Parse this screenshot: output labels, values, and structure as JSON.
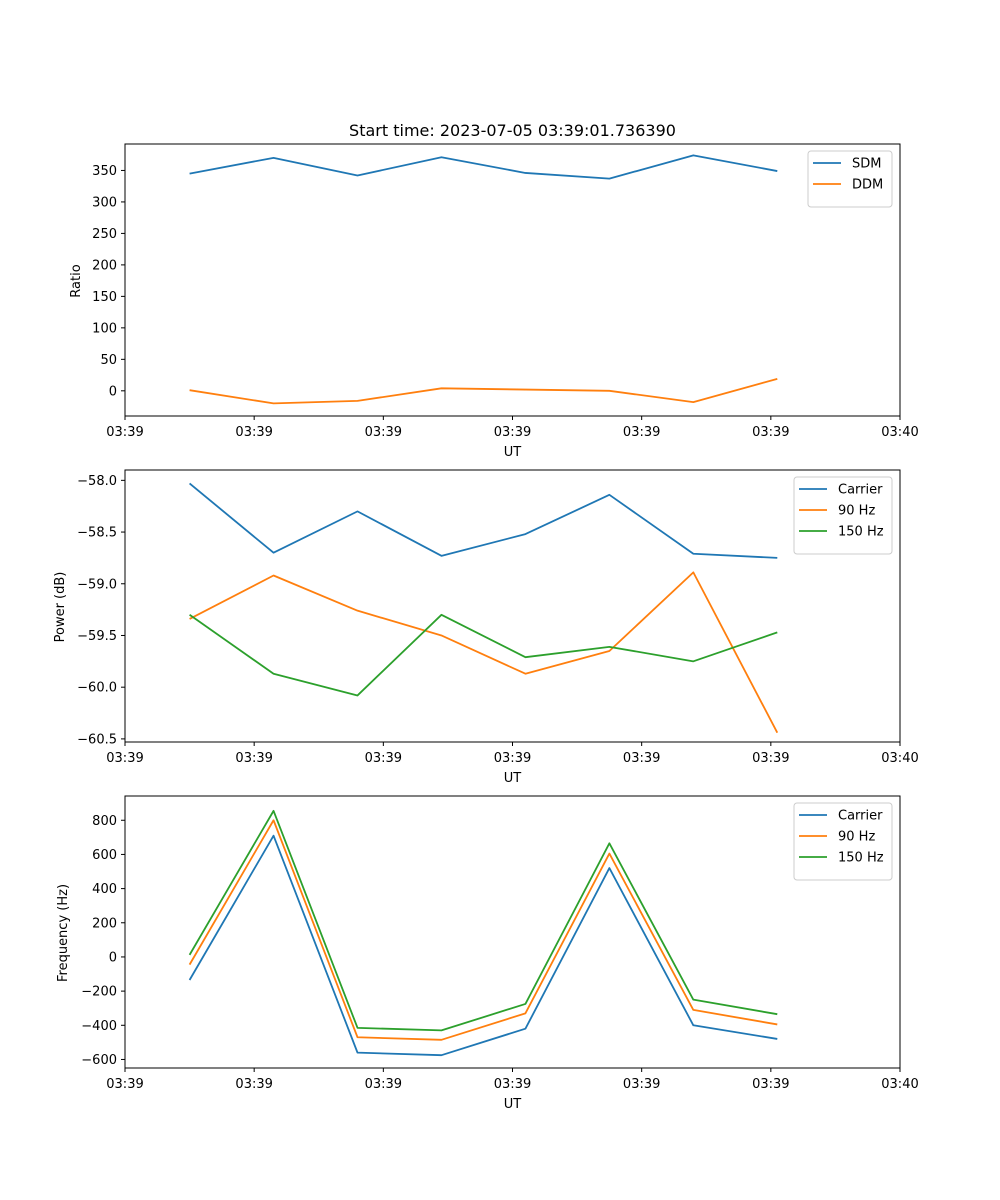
{
  "chart_data": [
    {
      "type": "line",
      "title": "Start time: 2023-07-05 03:39:01.736390",
      "xlabel": "UT",
      "ylabel": "Ratio",
      "x": [
        0.5,
        1.15,
        1.8,
        2.45,
        3.1,
        3.75,
        4.4,
        5.05
      ],
      "xlim": [
        0,
        6
      ],
      "xticks": [
        0,
        1,
        2,
        3,
        4,
        5,
        6
      ],
      "xtick_labels": [
        "03:39",
        "03:39",
        "03:39",
        "03:39",
        "03:39",
        "03:39",
        "03:40"
      ],
      "ylim": [
        -40,
        392
      ],
      "yticks": [
        0,
        50,
        100,
        150,
        200,
        250,
        300,
        350
      ],
      "ytick_labels": [
        "0",
        "50",
        "100",
        "150",
        "200",
        "250",
        "300",
        "350"
      ],
      "legend": "top-right",
      "series": [
        {
          "name": "SDM",
          "color": "#1f77b4",
          "values": [
            345,
            370,
            342,
            371,
            346,
            337,
            374,
            349
          ]
        },
        {
          "name": "DDM",
          "color": "#ff7f0e",
          "values": [
            1,
            -20,
            -16,
            4,
            2,
            0,
            -18,
            19
          ]
        }
      ]
    },
    {
      "type": "line",
      "title": "",
      "xlabel": "UT",
      "ylabel": "Power (dB)",
      "x": [
        0.5,
        1.15,
        1.8,
        2.45,
        3.1,
        3.75,
        4.4,
        5.05
      ],
      "xlim": [
        0,
        6
      ],
      "xticks": [
        0,
        1,
        2,
        3,
        4,
        5,
        6
      ],
      "xtick_labels": [
        "03:39",
        "03:39",
        "03:39",
        "03:39",
        "03:39",
        "03:39",
        "03:40"
      ],
      "ylim": [
        -60.53,
        -57.9
      ],
      "yticks": [
        -60.5,
        -60.0,
        -59.5,
        -59.0,
        -58.5,
        -58.0
      ],
      "ytick_labels": [
        "−60.5",
        "−60.0",
        "−59.5",
        "−59.0",
        "−58.5",
        "−58.0"
      ],
      "legend": "top-right",
      "series": [
        {
          "name": "Carrier",
          "color": "#1f77b4",
          "values": [
            -58.03,
            -58.7,
            -58.3,
            -58.73,
            -58.52,
            -58.14,
            -58.71,
            -58.75
          ]
        },
        {
          "name": "90 Hz",
          "color": "#ff7f0e",
          "values": [
            -59.34,
            -58.92,
            -59.26,
            -59.5,
            -59.87,
            -59.65,
            -58.89,
            -60.44
          ]
        },
        {
          "name": "150 Hz",
          "color": "#2ca02c",
          "values": [
            -59.3,
            -59.87,
            -60.08,
            -59.3,
            -59.71,
            -59.61,
            -59.75,
            -59.47
          ]
        }
      ]
    },
    {
      "type": "line",
      "title": "",
      "xlabel": "UT",
      "ylabel": "Frequency (Hz)",
      "x": [
        0.5,
        1.15,
        1.8,
        2.45,
        3.1,
        3.75,
        4.4,
        5.05
      ],
      "xlim": [
        0,
        6
      ],
      "xticks": [
        0,
        1,
        2,
        3,
        4,
        5,
        6
      ],
      "xtick_labels": [
        "03:39",
        "03:39",
        "03:39",
        "03:39",
        "03:39",
        "03:39",
        "03:40"
      ],
      "ylim": [
        -650,
        942
      ],
      "yticks": [
        -600,
        -400,
        -200,
        0,
        200,
        400,
        600,
        800
      ],
      "ytick_labels": [
        "−600",
        "−400",
        "−200",
        "0",
        "200",
        "400",
        "600",
        "800"
      ],
      "legend": "top-right",
      "series": [
        {
          "name": "Carrier",
          "color": "#1f77b4",
          "values": [
            -135,
            710,
            -560,
            -575,
            -420,
            520,
            -400,
            -480
          ]
        },
        {
          "name": "90 Hz",
          "color": "#ff7f0e",
          "values": [
            -45,
            800,
            -470,
            -485,
            -330,
            605,
            -310,
            -395
          ]
        },
        {
          "name": "150 Hz",
          "color": "#2ca02c",
          "values": [
            12,
            855,
            -415,
            -430,
            -275,
            665,
            -250,
            -335
          ]
        }
      ]
    }
  ]
}
